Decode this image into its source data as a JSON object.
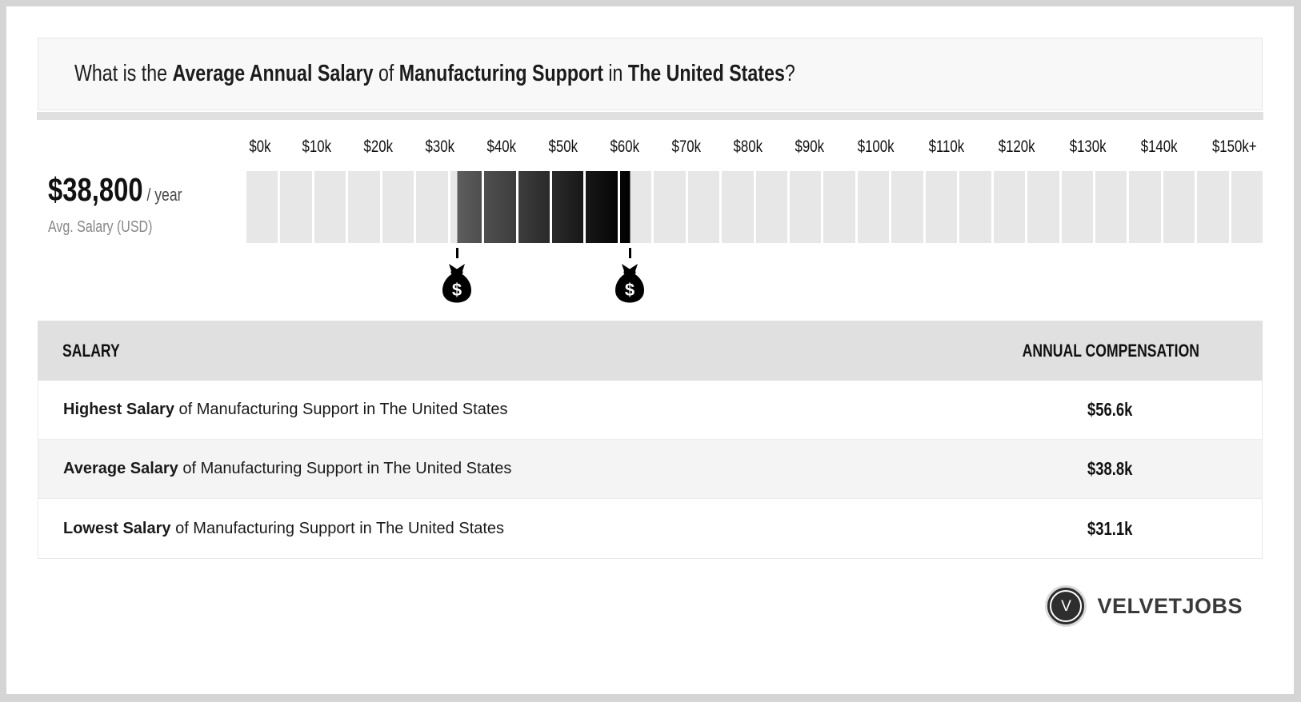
{
  "title": {
    "t1": "What is the ",
    "t2": "Average Annual Salary",
    "t3": " of ",
    "t4": "Manufacturing Support",
    "t5": " in ",
    "t6": "The United States",
    "t7": "?"
  },
  "summary": {
    "amount": "$38,800",
    "per": " / year",
    "caption": "Avg. Salary (USD)"
  },
  "chart_data": {
    "type": "bar",
    "subtype": "salary-range-gauge",
    "axis_labels": [
      "$0k",
      "$10k",
      "$20k",
      "$30k",
      "$40k",
      "$50k",
      "$60k",
      "$70k",
      "$80k",
      "$90k",
      "$100k",
      "$110k",
      "$120k",
      "$130k",
      "$140k",
      "$150k+"
    ],
    "axis_range_k": [
      0,
      150
    ],
    "segment_count": 30,
    "segment_size_k": 5,
    "average_salary_usd": 38800,
    "lowest_k": 31.1,
    "highest_k": 56.6,
    "markers": [
      {
        "name": "lowest-salary",
        "value_k": 31.1
      },
      {
        "name": "highest-salary",
        "value_k": 56.6
      }
    ],
    "colors": {
      "empty": "#e7e7e7",
      "fill_start": "#5d5d5d",
      "fill_end": "#000000"
    }
  },
  "table": {
    "header_salary": "SALARY",
    "header_compensation": "ANNUAL COMPENSATION",
    "rows": [
      {
        "bold": "Highest Salary",
        "rest": " of Manufacturing Support in The United States",
        "value": "$56.6k"
      },
      {
        "bold": "Average Salary",
        "rest": " of Manufacturing Support in The United States",
        "value": "$38.8k"
      },
      {
        "bold": "Lowest Salary",
        "rest": " of Manufacturing Support in The United States",
        "value": "$31.1k"
      }
    ]
  },
  "branding": {
    "logo_letter": "V",
    "name": "VELVETJOBS"
  }
}
